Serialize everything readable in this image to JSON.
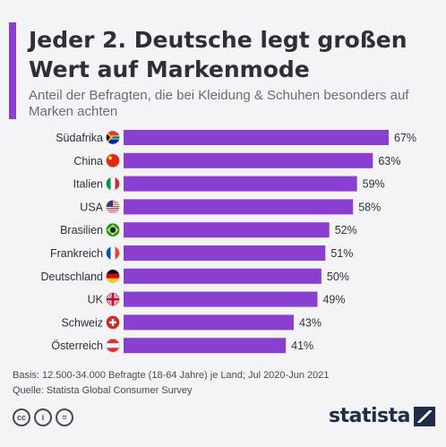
{
  "header": {
    "title": "Jeder 2. Deutsche legt großen Wert auf Markenmode",
    "subtitle": "Anteil der Befragten, die bei Kleidung & Schuhen besonders auf Marken achten"
  },
  "chart_data": {
    "type": "bar",
    "orientation": "horizontal",
    "categories": [
      "Südafrika",
      "China",
      "Italien",
      "USA",
      "Brasilien",
      "Frankreich",
      "Deutschland",
      "UK",
      "Schweiz",
      "Österreich"
    ],
    "values": [
      67,
      63,
      59,
      58,
      52,
      51,
      50,
      49,
      43,
      41
    ],
    "value_labels": [
      "67%",
      "63%",
      "59%",
      "58%",
      "52%",
      "51%",
      "50%",
      "49%",
      "43%",
      "41%"
    ],
    "flags": [
      "flag-south-africa-icon",
      "flag-china-icon",
      "flag-italy-icon",
      "flag-usa-icon",
      "flag-brazil-icon",
      "flag-france-icon",
      "flag-germany-icon",
      "flag-uk-icon",
      "flag-switzerland-icon",
      "flag-austria-icon"
    ],
    "bar_color": "#8a3fd1",
    "xlim": [
      0,
      67
    ]
  },
  "footer": {
    "basis": "Basis: 12.500-34.000 Befragte (18-64 Jahre) je Land; Jul 2020-Jun 2021",
    "source": "Quelle: Statista Global Consumer Survey",
    "brand": "statista"
  },
  "colors": {
    "accent": "#8a3fd1",
    "text": "#2f2f3a",
    "brand": "#1f2d4b"
  }
}
